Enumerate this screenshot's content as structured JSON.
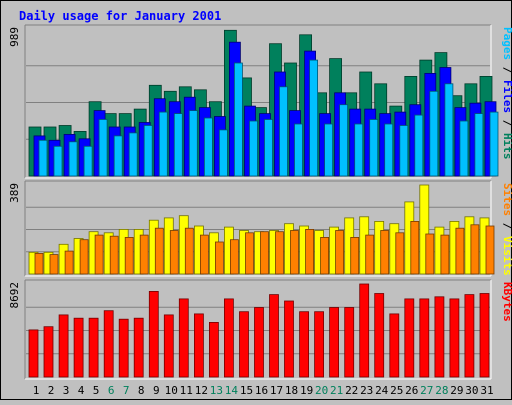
{
  "chart_data": [
    {
      "type": "bar",
      "title": "Daily usage for January 2001",
      "max_label": "989",
      "categories": [
        "1",
        "2",
        "3",
        "4",
        "5",
        "6",
        "7",
        "8",
        "9",
        "10",
        "11",
        "12",
        "13",
        "14",
        "15",
        "16",
        "17",
        "18",
        "19",
        "20",
        "21",
        "22",
        "23",
        "24",
        "25",
        "26",
        "27",
        "28",
        "29",
        "30",
        "31"
      ],
      "weekend_days": [
        "6",
        "7",
        "13",
        "14",
        "20",
        "21",
        "27",
        "28"
      ],
      "ylim": [
        0,
        989
      ],
      "series": [
        {
          "name": "Hits",
          "color": "#00805c",
          "values": [
            330,
            330,
            340,
            300,
            500,
            420,
            420,
            450,
            610,
            570,
            600,
            580,
            500,
            980,
            660,
            460,
            890,
            760,
            950,
            560,
            790,
            560,
            700,
            620,
            470,
            670,
            780,
            830,
            540,
            620,
            670
          ]
        },
        {
          "name": "Files",
          "color": "#0000ff",
          "values": [
            270,
            240,
            280,
            250,
            440,
            330,
            330,
            360,
            520,
            500,
            530,
            460,
            400,
            900,
            470,
            420,
            700,
            440,
            840,
            420,
            560,
            450,
            450,
            420,
            430,
            480,
            690,
            730,
            460,
            490,
            500
          ]
        },
        {
          "name": "Pages",
          "color": "#00c0ff",
          "values": [
            240,
            200,
            230,
            200,
            380,
            270,
            290,
            340,
            430,
            420,
            440,
            390,
            310,
            760,
            370,
            380,
            600,
            350,
            780,
            350,
            480,
            350,
            380,
            350,
            340,
            410,
            570,
            620,
            370,
            420,
            430
          ]
        }
      ]
    },
    {
      "type": "bar",
      "max_label": "389",
      "categories": [
        "1",
        "2",
        "3",
        "4",
        "5",
        "6",
        "7",
        "8",
        "9",
        "10",
        "11",
        "12",
        "13",
        "14",
        "15",
        "16",
        "17",
        "18",
        "19",
        "20",
        "21",
        "22",
        "23",
        "24",
        "25",
        "26",
        "27",
        "28",
        "29",
        "30",
        "31"
      ],
      "ylim": [
        0,
        389
      ],
      "series": [
        {
          "name": "Visits",
          "color": "#ffff00",
          "values": [
            95,
            95,
            130,
            155,
            185,
            180,
            195,
            195,
            235,
            245,
            255,
            210,
            180,
            205,
            190,
            185,
            190,
            220,
            210,
            190,
            205,
            245,
            250,
            230,
            220,
            315,
            389,
            205,
            230,
            250,
            245
          ]
        },
        {
          "name": "Sites",
          "color": "#ff8000",
          "values": [
            90,
            85,
            100,
            150,
            170,
            165,
            160,
            170,
            200,
            190,
            200,
            170,
            140,
            150,
            180,
            185,
            185,
            190,
            195,
            160,
            190,
            160,
            170,
            190,
            180,
            230,
            175,
            170,
            200,
            215,
            210
          ]
        }
      ]
    },
    {
      "type": "bar",
      "max_label": "8692",
      "categories": [
        "1",
        "2",
        "3",
        "4",
        "5",
        "6",
        "7",
        "8",
        "9",
        "10",
        "11",
        "12",
        "13",
        "14",
        "15",
        "16",
        "17",
        "18",
        "19",
        "20",
        "21",
        "22",
        "23",
        "24",
        "25",
        "26",
        "27",
        "28",
        "29",
        "30",
        "31"
      ],
      "ylim": [
        0,
        8692
      ],
      "series": [
        {
          "name": "KBytes",
          "color": "#ff0000",
          "values": [
            4400,
            4700,
            5800,
            5500,
            5500,
            6200,
            5400,
            5500,
            8000,
            5800,
            7300,
            5900,
            5100,
            7300,
            6100,
            6500,
            7700,
            7100,
            6100,
            6100,
            6500,
            6500,
            8692,
            7800,
            5900,
            7300,
            7300,
            7500,
            7300,
            7700,
            7800
          ]
        }
      ]
    }
  ]
}
